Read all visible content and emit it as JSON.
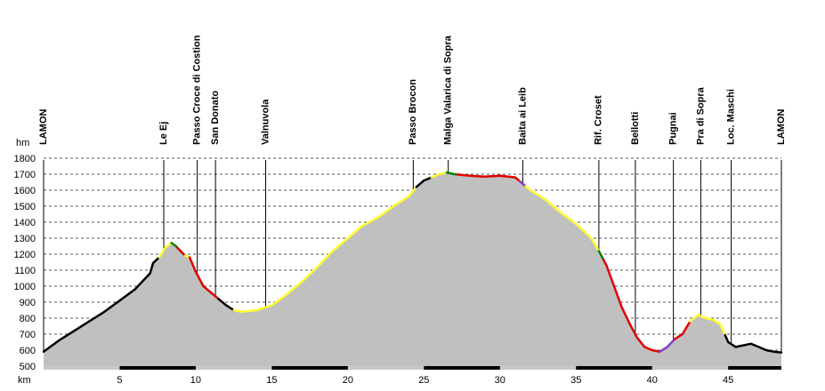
{
  "chart_data": {
    "type": "area",
    "title": "",
    "xlabel": "km",
    "ylabel": "hm",
    "xlim": [
      0,
      48.5
    ],
    "ylim": [
      500,
      1800
    ],
    "x_ticks": [
      5,
      10,
      15,
      20,
      25,
      30,
      35,
      40,
      45
    ],
    "x_tick_labels": [
      "5",
      "10",
      "15",
      "20",
      "25",
      "30",
      "35",
      "40",
      "45"
    ],
    "y_ticks": [
      500,
      600,
      700,
      800,
      900,
      1000,
      1100,
      1200,
      1300,
      1400,
      1500,
      1600,
      1700,
      1800
    ],
    "y_tick_labels": [
      "500",
      "600",
      "700",
      "800",
      "900",
      "1000",
      "1100",
      "1200",
      "1300",
      "1400",
      "1500",
      "1600",
      "1700",
      "1800"
    ],
    "grid": {
      "horizontal": true,
      "dashed": true
    },
    "colors": {
      "fill": "#c0c0c0",
      "grid": "#555555",
      "axis_bar_dark": "#000000",
      "axis_bar_light": "#c8c8c8",
      "black": "#000000",
      "yellow": "#ffff33",
      "red": "#e00000",
      "green": "#008000",
      "purple": "#8040c0"
    },
    "profile": [
      [
        0,
        590
      ],
      [
        1,
        660
      ],
      [
        2,
        720
      ],
      [
        3,
        780
      ],
      [
        4,
        840
      ],
      [
        5,
        910
      ],
      [
        6,
        980
      ],
      [
        7,
        1080
      ],
      [
        7.2,
        1145
      ],
      [
        7.6,
        1180
      ],
      [
        8,
        1240
      ],
      [
        8.4,
        1270
      ],
      [
        8.7,
        1250
      ],
      [
        9,
        1220
      ],
      [
        9.3,
        1190
      ],
      [
        9.6,
        1180
      ],
      [
        10,
        1090
      ],
      [
        10.5,
        1000
      ],
      [
        11,
        960
      ],
      [
        11.5,
        920
      ],
      [
        12,
        880
      ],
      [
        12.5,
        850
      ],
      [
        13,
        840
      ],
      [
        14,
        850
      ],
      [
        15,
        880
      ],
      [
        16,
        950
      ],
      [
        17,
        1030
      ],
      [
        18,
        1120
      ],
      [
        19,
        1220
      ],
      [
        20,
        1300
      ],
      [
        21,
        1380
      ],
      [
        22,
        1430
      ],
      [
        23,
        1500
      ],
      [
        24,
        1560
      ],
      [
        24.5,
        1620
      ],
      [
        25,
        1660
      ],
      [
        25.5,
        1680
      ],
      [
        26,
        1700
      ],
      [
        26.5,
        1710
      ],
      [
        27,
        1700
      ],
      [
        28,
        1690
      ],
      [
        29,
        1685
      ],
      [
        30,
        1690
      ],
      [
        31,
        1680
      ],
      [
        31.5,
        1640
      ],
      [
        32,
        1600
      ],
      [
        33,
        1540
      ],
      [
        34,
        1460
      ],
      [
        35,
        1390
      ],
      [
        36,
        1300
      ],
      [
        36.5,
        1220
      ],
      [
        37,
        1130
      ],
      [
        37.5,
        1000
      ],
      [
        38,
        870
      ],
      [
        38.5,
        770
      ],
      [
        39,
        680
      ],
      [
        39.5,
        620
      ],
      [
        40,
        600
      ],
      [
        40.5,
        590
      ],
      [
        41,
        620
      ],
      [
        41.5,
        670
      ],
      [
        42,
        700
      ],
      [
        42.5,
        780
      ],
      [
        43,
        820
      ],
      [
        43.5,
        800
      ],
      [
        44,
        790
      ],
      [
        44.5,
        760
      ],
      [
        45,
        650
      ],
      [
        45.5,
        620
      ],
      [
        46,
        630
      ],
      [
        46.5,
        640
      ],
      [
        47,
        620
      ],
      [
        47.5,
        600
      ],
      [
        48,
        590
      ],
      [
        48.5,
        585
      ]
    ],
    "segments": [
      {
        "from": 0,
        "to": 7.6,
        "color": "black"
      },
      {
        "from": 7.6,
        "to": 8.4,
        "color": "yellow"
      },
      {
        "from": 8.4,
        "to": 8.8,
        "color": "green"
      },
      {
        "from": 8.8,
        "to": 9.3,
        "color": "red"
      },
      {
        "from": 9.3,
        "to": 9.6,
        "color": "yellow"
      },
      {
        "from": 9.6,
        "to": 11.5,
        "color": "red"
      },
      {
        "from": 11.5,
        "to": 12.5,
        "color": "black"
      },
      {
        "from": 12.5,
        "to": 24.5,
        "color": "yellow"
      },
      {
        "from": 24.5,
        "to": 25.5,
        "color": "black"
      },
      {
        "from": 25.5,
        "to": 26.5,
        "color": "yellow"
      },
      {
        "from": 26.5,
        "to": 27.2,
        "color": "green"
      },
      {
        "from": 27.2,
        "to": 31.3,
        "color": "red"
      },
      {
        "from": 31.3,
        "to": 31.7,
        "color": "purple"
      },
      {
        "from": 31.7,
        "to": 36.5,
        "color": "yellow"
      },
      {
        "from": 36.5,
        "to": 36.8,
        "color": "green"
      },
      {
        "from": 36.8,
        "to": 40.5,
        "color": "red"
      },
      {
        "from": 40.5,
        "to": 41.5,
        "color": "purple"
      },
      {
        "from": 41.5,
        "to": 42.5,
        "color": "red"
      },
      {
        "from": 42.5,
        "to": 44.8,
        "color": "yellow"
      },
      {
        "from": 44.8,
        "to": 48.5,
        "color": "black"
      }
    ],
    "waypoints": [
      {
        "name": "LAMON",
        "km": 0
      },
      {
        "name": "Le Ej",
        "km": 7.9
      },
      {
        "name": "Passo Croce di Costion",
        "km": 10.1
      },
      {
        "name": "San Donato",
        "km": 11.3
      },
      {
        "name": "Valnuvola",
        "km": 14.6
      },
      {
        "name": "Passo Brocon",
        "km": 24.3
      },
      {
        "name": "Malga Valarica di Sopra",
        "km": 26.6
      },
      {
        "name": "Baita ai Leib",
        "km": 31.5
      },
      {
        "name": "Rif. Croset",
        "km": 36.5
      },
      {
        "name": "Bellotti",
        "km": 38.9
      },
      {
        "name": "Pugnai",
        "km": 41.4
      },
      {
        "name": "Pra di Sopra",
        "km": 43.2
      },
      {
        "name": "Loc. Maschi",
        "km": 45.2
      },
      {
        "name": "LAMON",
        "km": 48.5
      }
    ]
  }
}
